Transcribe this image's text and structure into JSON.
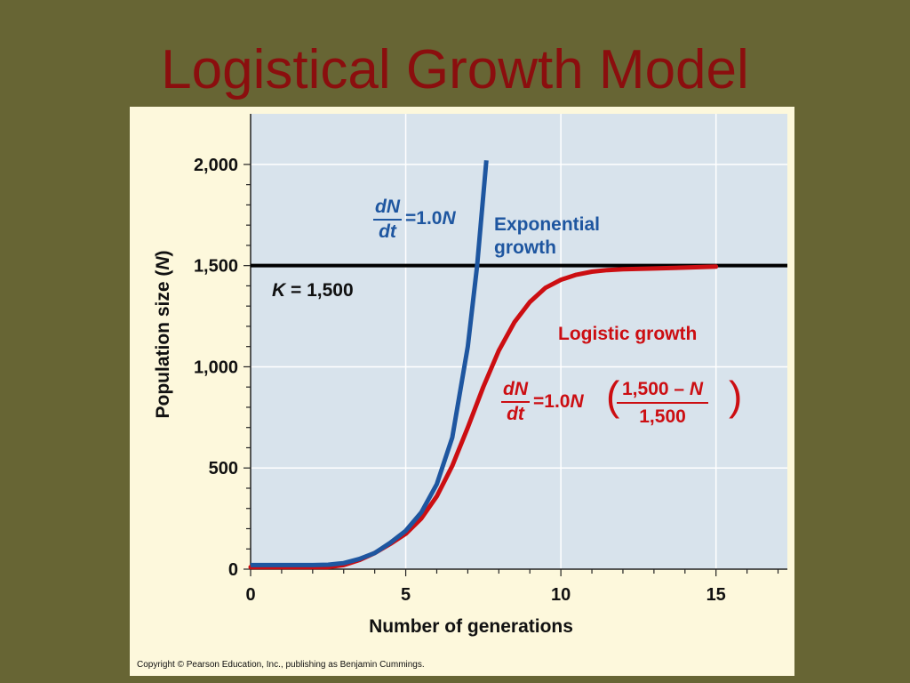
{
  "slide": {
    "title": "Logistical Growth Model",
    "copyright": "Copyright © Pearson Education, Inc., publishing as Benjamin Cummings."
  },
  "chart_data": {
    "type": "line",
    "xlabel": "Number of generations",
    "ylabel_text": "Population size (",
    "ylabel_var": "N",
    "ylabel_close": ")",
    "xlim": [
      0,
      17.3
    ],
    "ylim": [
      0,
      2250
    ],
    "xticks": [
      0,
      5,
      10,
      15
    ],
    "yticks": [
      0,
      500,
      1000,
      1500,
      2000
    ],
    "ytick_labels": [
      "0",
      "500",
      "1,000",
      "1,500",
      "2,000"
    ],
    "grid": true,
    "colors": {
      "plot_bg": "#d8e3ec",
      "exponential": "#1e56a0",
      "logistic": "#cc0e12",
      "capacity": "#000000"
    },
    "capacity": {
      "value": 1500,
      "label_var": "K",
      "label_rest": " = 1,500"
    },
    "series": [
      {
        "name": "Exponential growth",
        "name_line1": "Exponential",
        "name_line2": "growth",
        "x": [
          0,
          1,
          2,
          2.5,
          3,
          3.5,
          4,
          4.5,
          5,
          5.5,
          6,
          6.5,
          7,
          7.3,
          7.6
        ],
        "y": [
          20,
          20,
          20,
          22,
          30,
          50,
          80,
          130,
          190,
          280,
          420,
          650,
          1100,
          1500,
          2020
        ]
      },
      {
        "name": "Logistic growth",
        "x": [
          0,
          1,
          2,
          2.5,
          3,
          3.5,
          4,
          4.5,
          5,
          5.5,
          6,
          6.5,
          7,
          7.5,
          8,
          8.5,
          9,
          9.5,
          10,
          10.5,
          11,
          11.5,
          12,
          13,
          14,
          15
        ],
        "y": [
          10,
          10,
          10,
          10,
          20,
          45,
          80,
          125,
          175,
          250,
          360,
          510,
          700,
          900,
          1080,
          1220,
          1320,
          1390,
          1430,
          1455,
          1470,
          1478,
          1482,
          1486,
          1490,
          1495
        ]
      }
    ],
    "equations": {
      "exp": {
        "num": "dN",
        "den": "dt",
        "rhs": "=1.0",
        "var": "N"
      },
      "log": {
        "num": "dN",
        "den": "dt",
        "rhs": "=1.0",
        "var": "N",
        "inner_num": "1,500 – ",
        "inner_var": "N",
        "inner_den": "1,500"
      }
    }
  }
}
